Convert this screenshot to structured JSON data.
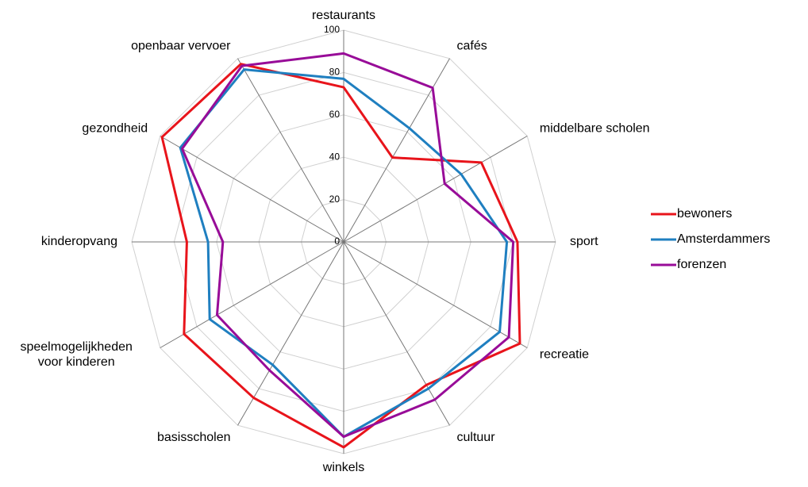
{
  "chart_data": {
    "type": "radar",
    "categories": [
      "restaurants",
      "cafés",
      "middelbare scholen",
      "sport",
      "recreatie",
      "cultuur",
      "winkels",
      "basisscholen",
      "speelmogelijkheden voor kinderen",
      "kinderopvang",
      "gezondheid",
      "openbaar vervoer"
    ],
    "series": [
      {
        "name": "bewoners",
        "color": "#e8141b",
        "values": [
          73,
          46,
          75,
          82,
          96,
          78,
          97,
          85,
          87,
          74,
          99,
          97
        ]
      },
      {
        "name": "Amsterdammers",
        "color": "#1f7fc0",
        "values": [
          77,
          62,
          64,
          77,
          85,
          80,
          92,
          67,
          73,
          64,
          89,
          94
        ]
      },
      {
        "name": "forenzen",
        "color": "#980c98",
        "values": [
          89,
          84,
          55,
          80,
          90,
          86,
          92,
          70,
          69,
          57,
          88,
          96
        ]
      }
    ],
    "ylim": [
      0,
      100
    ],
    "yticks": [
      0,
      20,
      40,
      60,
      80,
      100
    ],
    "grid": true,
    "legend": "right"
  }
}
